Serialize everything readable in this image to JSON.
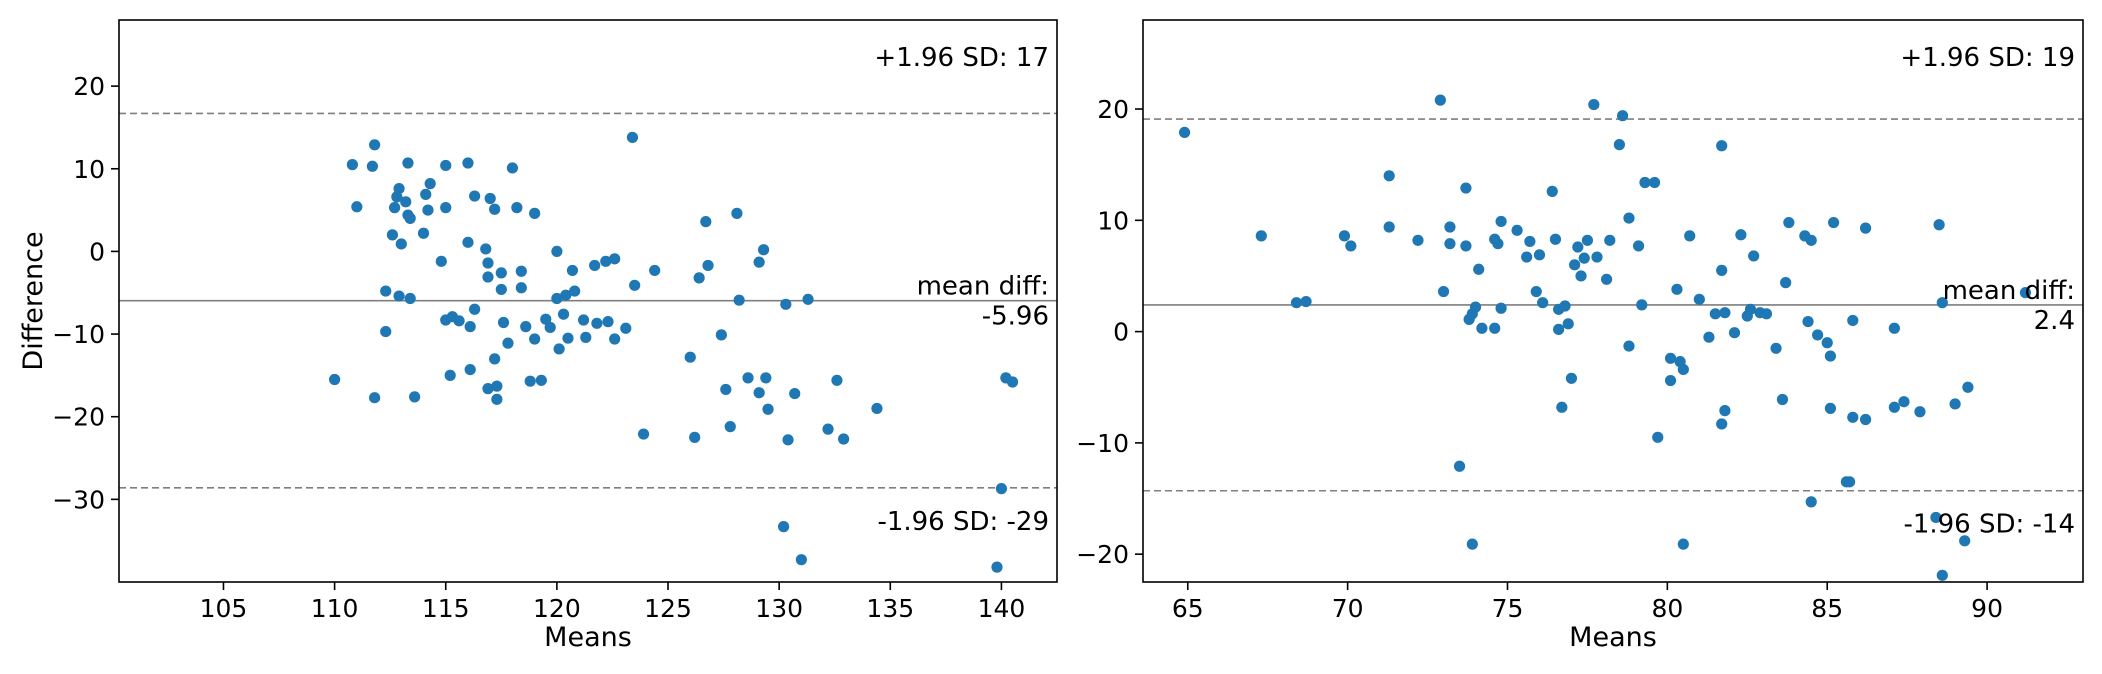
{
  "chart_data": [
    {
      "type": "scatter",
      "title": "",
      "xlabel": "Means",
      "ylabel": "Difference",
      "xlim": [
        100.3,
        142.5
      ],
      "ylim": [
        -40,
        28
      ],
      "x_ticks": [
        105,
        110,
        115,
        120,
        125,
        130,
        135,
        140
      ],
      "y_ticks": [
        -30,
        -20,
        -10,
        0,
        10,
        20
      ],
      "grid": false,
      "point_color": "#1f77b4",
      "mean_diff": -5.96,
      "upper_loa": 16.7,
      "lower_loa": -28.6,
      "annotations": {
        "upper": "+1.96 SD: 17",
        "mean_label": "mean diff:",
        "mean_value": "-5.96",
        "lower": "-1.96 SD: -29"
      },
      "points": [
        [
          110.0,
          -15.5
        ],
        [
          110.8,
          10.5
        ],
        [
          111.0,
          5.4
        ],
        [
          111.7,
          10.3
        ],
        [
          111.8,
          12.9
        ],
        [
          111.8,
          -17.7
        ],
        [
          112.3,
          -4.8
        ],
        [
          112.3,
          -9.7
        ],
        [
          112.6,
          2.0
        ],
        [
          112.7,
          5.3
        ],
        [
          112.8,
          6.6
        ],
        [
          112.9,
          7.6
        ],
        [
          112.9,
          -5.4
        ],
        [
          113.0,
          0.9
        ],
        [
          113.2,
          6.0
        ],
        [
          113.3,
          10.7
        ],
        [
          113.3,
          4.4
        ],
        [
          113.4,
          4.0
        ],
        [
          113.4,
          -5.7
        ],
        [
          113.6,
          -17.6
        ],
        [
          114.0,
          2.2
        ],
        [
          114.1,
          6.9
        ],
        [
          114.2,
          5.0
        ],
        [
          114.3,
          8.2
        ],
        [
          114.8,
          -1.2
        ],
        [
          115.0,
          10.4
        ],
        [
          115.0,
          5.3
        ],
        [
          115.0,
          -8.3
        ],
        [
          115.2,
          -15.0
        ],
        [
          115.3,
          -7.9
        ],
        [
          115.6,
          -8.4
        ],
        [
          116.0,
          10.7
        ],
        [
          116.0,
          1.1
        ],
        [
          116.1,
          -9.1
        ],
        [
          116.1,
          -14.3
        ],
        [
          116.3,
          6.7
        ],
        [
          116.3,
          -7.0
        ],
        [
          116.8,
          0.3
        ],
        [
          116.9,
          -1.4
        ],
        [
          116.9,
          -3.1
        ],
        [
          116.9,
          -16.6
        ],
        [
          117.0,
          6.4
        ],
        [
          117.2,
          5.1
        ],
        [
          117.2,
          -13.0
        ],
        [
          117.3,
          -16.3
        ],
        [
          117.3,
          -17.9
        ],
        [
          117.5,
          -2.6
        ],
        [
          117.5,
          -4.6
        ],
        [
          117.6,
          -8.6
        ],
        [
          117.8,
          -11.1
        ],
        [
          118.0,
          10.1
        ],
        [
          118.2,
          5.3
        ],
        [
          118.4,
          -2.4
        ],
        [
          118.4,
          -4.4
        ],
        [
          118.6,
          -9.1
        ],
        [
          118.8,
          -15.7
        ],
        [
          119.0,
          4.6
        ],
        [
          119.0,
          -10.6
        ],
        [
          119.3,
          -15.6
        ],
        [
          119.5,
          -8.2
        ],
        [
          119.7,
          -9.2
        ],
        [
          120.0,
          0.0
        ],
        [
          120.0,
          -5.7
        ],
        [
          120.1,
          -11.8
        ],
        [
          120.3,
          -7.6
        ],
        [
          120.4,
          -5.3
        ],
        [
          120.5,
          -10.5
        ],
        [
          120.7,
          -2.3
        ],
        [
          120.8,
          -4.8
        ],
        [
          121.2,
          -8.3
        ],
        [
          121.3,
          -10.4
        ],
        [
          121.7,
          -1.7
        ],
        [
          121.8,
          -8.7
        ],
        [
          122.2,
          -1.2
        ],
        [
          122.3,
          -8.5
        ],
        [
          122.6,
          -0.9
        ],
        [
          122.6,
          -10.6
        ],
        [
          123.1,
          -9.3
        ],
        [
          123.4,
          13.8
        ],
        [
          123.5,
          -4.1
        ],
        [
          123.9,
          -22.1
        ],
        [
          124.4,
          -2.3
        ],
        [
          126.0,
          -12.8
        ],
        [
          126.2,
          -22.5
        ],
        [
          126.4,
          -3.2
        ],
        [
          126.7,
          3.6
        ],
        [
          126.8,
          -1.7
        ],
        [
          127.4,
          -10.1
        ],
        [
          127.6,
          -16.7
        ],
        [
          127.8,
          -21.2
        ],
        [
          128.1,
          4.6
        ],
        [
          128.2,
          -5.9
        ],
        [
          128.6,
          -15.3
        ],
        [
          129.1,
          -1.3
        ],
        [
          129.1,
          -17.1
        ],
        [
          129.3,
          0.2
        ],
        [
          129.4,
          -15.3
        ],
        [
          129.5,
          -19.1
        ],
        [
          130.2,
          -33.3
        ],
        [
          130.3,
          -6.4
        ],
        [
          130.4,
          -22.8
        ],
        [
          130.7,
          -17.2
        ],
        [
          131.0,
          -37.3
        ],
        [
          131.3,
          -5.8
        ],
        [
          132.2,
          -21.5
        ],
        [
          132.6,
          -15.6
        ],
        [
          132.9,
          -22.7
        ],
        [
          134.4,
          -19.0
        ],
        [
          139.8,
          -38.2
        ],
        [
          140.0,
          -28.7
        ],
        [
          140.2,
          -15.3
        ],
        [
          140.5,
          -15.8
        ]
      ]
    },
    {
      "type": "scatter",
      "title": "",
      "xlabel": "Means",
      "ylabel": "",
      "xlim": [
        63.6,
        93.0
      ],
      "ylim": [
        -22.5,
        28
      ],
      "x_ticks": [
        65,
        70,
        75,
        80,
        85,
        90
      ],
      "y_ticks": [
        -20,
        -10,
        0,
        10,
        20
      ],
      "grid": false,
      "point_color": "#1f77b4",
      "mean_diff": 2.4,
      "upper_loa": 19.1,
      "lower_loa": -14.3,
      "annotations": {
        "upper": "+1.96 SD: 19",
        "mean_label": "mean diff:",
        "mean_value": "2.4",
        "lower": "-1.96 SD: -14"
      },
      "points": [
        [
          64.9,
          17.9
        ],
        [
          67.3,
          8.6
        ],
        [
          68.4,
          2.6
        ],
        [
          68.7,
          2.7
        ],
        [
          69.9,
          8.6
        ],
        [
          70.1,
          7.7
        ],
        [
          71.3,
          14.0
        ],
        [
          71.3,
          9.4
        ],
        [
          72.2,
          8.2
        ],
        [
          72.9,
          20.8
        ],
        [
          73.0,
          3.6
        ],
        [
          73.2,
          9.4
        ],
        [
          73.2,
          7.9
        ],
        [
          73.5,
          -12.1
        ],
        [
          73.7,
          12.9
        ],
        [
          73.7,
          7.7
        ],
        [
          73.8,
          1.1
        ],
        [
          73.9,
          -19.1
        ],
        [
          73.9,
          1.6
        ],
        [
          74.0,
          2.2
        ],
        [
          74.1,
          5.6
        ],
        [
          74.2,
          0.3
        ],
        [
          74.6,
          8.3
        ],
        [
          74.6,
          0.3
        ],
        [
          74.7,
          7.9
        ],
        [
          74.8,
          2.1
        ],
        [
          74.8,
          9.9
        ],
        [
          75.3,
          9.1
        ],
        [
          75.6,
          6.7
        ],
        [
          75.7,
          8.1
        ],
        [
          75.9,
          3.6
        ],
        [
          76.0,
          6.9
        ],
        [
          76.1,
          2.6
        ],
        [
          76.4,
          12.6
        ],
        [
          76.5,
          8.3
        ],
        [
          76.6,
          0.2
        ],
        [
          76.6,
          2.0
        ],
        [
          76.7,
          -6.8
        ],
        [
          76.8,
          2.3
        ],
        [
          76.9,
          0.7
        ],
        [
          77.0,
          -4.2
        ],
        [
          77.1,
          6.0
        ],
        [
          77.2,
          7.6
        ],
        [
          77.3,
          5.0
        ],
        [
          77.4,
          6.6
        ],
        [
          77.5,
          8.2
        ],
        [
          77.7,
          20.4
        ],
        [
          77.8,
          6.7
        ],
        [
          78.1,
          4.7
        ],
        [
          78.2,
          8.2
        ],
        [
          78.5,
          16.8
        ],
        [
          78.6,
          19.4
        ],
        [
          78.8,
          10.2
        ],
        [
          78.8,
          -1.3
        ],
        [
          79.1,
          7.7
        ],
        [
          79.2,
          2.4
        ],
        [
          79.3,
          13.4
        ],
        [
          79.6,
          13.4
        ],
        [
          79.7,
          -9.5
        ],
        [
          80.1,
          -2.4
        ],
        [
          80.1,
          -4.4
        ],
        [
          80.3,
          3.8
        ],
        [
          80.4,
          -2.7
        ],
        [
          80.5,
          -3.4
        ],
        [
          80.5,
          -19.1
        ],
        [
          80.7,
          8.6
        ],
        [
          81.0,
          2.9
        ],
        [
          81.3,
          -0.5
        ],
        [
          81.5,
          1.6
        ],
        [
          81.7,
          16.7
        ],
        [
          81.7,
          5.5
        ],
        [
          81.7,
          -8.3
        ],
        [
          81.8,
          -7.1
        ],
        [
          81.8,
          1.7
        ],
        [
          82.1,
          -0.1
        ],
        [
          82.3,
          8.7
        ],
        [
          82.5,
          1.4
        ],
        [
          82.6,
          2.0
        ],
        [
          82.7,
          6.8
        ],
        [
          82.9,
          1.7
        ],
        [
          83.1,
          1.6
        ],
        [
          83.4,
          -1.5
        ],
        [
          83.6,
          -6.1
        ],
        [
          83.7,
          4.4
        ],
        [
          83.8,
          9.8
        ],
        [
          84.3,
          8.6
        ],
        [
          84.4,
          0.9
        ],
        [
          84.5,
          -15.3
        ],
        [
          84.5,
          8.2
        ],
        [
          84.7,
          -0.3
        ],
        [
          85.0,
          -1.0
        ],
        [
          85.1,
          -2.2
        ],
        [
          85.1,
          -6.9
        ],
        [
          85.2,
          9.8
        ],
        [
          85.6,
          -13.5
        ],
        [
          85.7,
          -13.5
        ],
        [
          85.8,
          1.0
        ],
        [
          85.8,
          -7.7
        ],
        [
          86.2,
          -7.9
        ],
        [
          86.2,
          9.3
        ],
        [
          87.1,
          0.3
        ],
        [
          87.1,
          -6.8
        ],
        [
          87.4,
          -6.3
        ],
        [
          87.9,
          -7.2
        ],
        [
          88.4,
          -16.7
        ],
        [
          88.5,
          9.6
        ],
        [
          88.6,
          2.6
        ],
        [
          88.6,
          -21.9
        ],
        [
          89.0,
          -6.5
        ],
        [
          89.3,
          -18.8
        ],
        [
          89.4,
          -5.0
        ],
        [
          91.2,
          3.5
        ]
      ]
    }
  ]
}
